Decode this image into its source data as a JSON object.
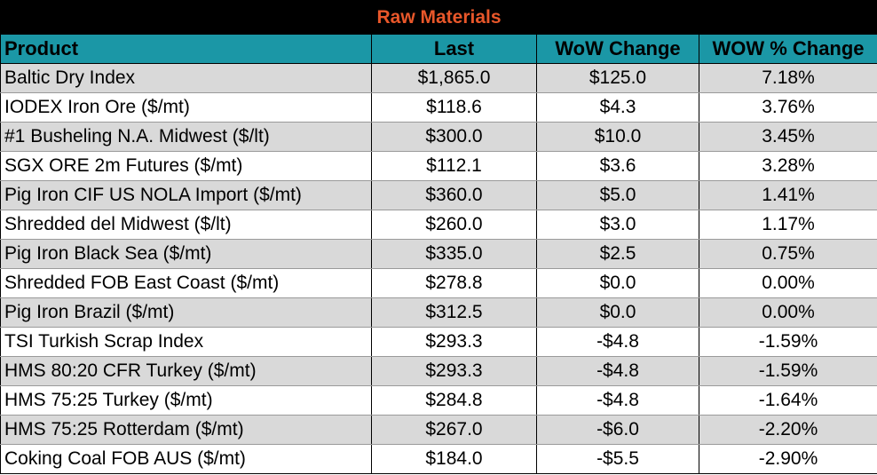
{
  "title": "Raw Materials",
  "columns": [
    "Product",
    "Last",
    "WoW Change",
    "WOW % Change"
  ],
  "rows": [
    {
      "product": "Baltic Dry Index",
      "last": "$1,865.0",
      "wow": "$125.0",
      "pct": "7.18%"
    },
    {
      "product": "IODEX  Iron Ore ($/mt)",
      "last": "$118.6",
      "wow": "$4.3",
      "pct": "3.76%"
    },
    {
      "product": "#1 Busheling N.A. Midwest ($/lt)",
      "last": "$300.0",
      "wow": "$10.0",
      "pct": "3.45%"
    },
    {
      "product": "SGX ORE 2m Futures ($/mt)",
      "last": "$112.1",
      "wow": "$3.6",
      "pct": "3.28%"
    },
    {
      "product": "Pig Iron CIF US NOLA Import ($/mt)",
      "last": "$360.0",
      "wow": "$5.0",
      "pct": "1.41%"
    },
    {
      "product": "Shredded del  Midwest ($/lt)",
      "last": "$260.0",
      "wow": "$3.0",
      "pct": "1.17%"
    },
    {
      "product": "Pig Iron Black Sea ($/mt)",
      "last": "$335.0",
      "wow": "$2.5",
      "pct": "0.75%"
    },
    {
      "product": "Shredded FOB East Coast ($/mt)",
      "last": "$278.8",
      "wow": "$0.0",
      "pct": "0.00%"
    },
    {
      "product": "Pig Iron Brazil ($/mt)",
      "last": "$312.5",
      "wow": "$0.0",
      "pct": "0.00%"
    },
    {
      "product": "TSI Turkish Scrap Index",
      "last": "$293.3",
      "wow": "-$4.8",
      "pct": "-1.59%"
    },
    {
      "product": "HMS 80:20 CFR Turkey ($/mt)",
      "last": "$293.3",
      "wow": "-$4.8",
      "pct": "-1.59%"
    },
    {
      "product": "HMS 75:25 Turkey ($/mt)",
      "last": "$284.8",
      "wow": "-$4.8",
      "pct": "-1.64%"
    },
    {
      "product": "HMS 75:25 Rotterdam ($/mt)",
      "last": "$267.0",
      "wow": "-$6.0",
      "pct": "-2.20%"
    },
    {
      "product": "Coking Coal FOB AUS ($/mt)",
      "last": "$184.0",
      "wow": "-$5.5",
      "pct": "-2.90%"
    }
  ],
  "colors": {
    "title_bg": "#000000",
    "title_text": "#e8572a",
    "header_bg": "#1b97a6",
    "row_shade": "#d9d9d9",
    "row_plain": "#ffffff"
  }
}
